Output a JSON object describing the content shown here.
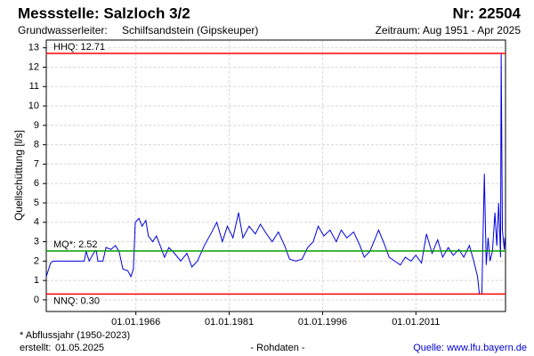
{
  "chart_data": {
    "type": "line",
    "title": "Messstelle: Salzloch 3/2",
    "number": "Nr: 22504",
    "aquifer_label": "Grundwasserleiter:",
    "aquifer": "Schilfsandstein (Gipskeuper)",
    "period": "Zeitraum: Aug 1951 - Apr 2025",
    "y_label": "Quellschüttung [l/s]",
    "footnote": "* Abflussjahr (1950-2023)",
    "created_label": "erstellt:",
    "created": "01.05.2025",
    "data_note": "- Rohdaten -",
    "source": "Quelle: www.lfu.bayern.de",
    "grid": true,
    "xlim": [
      1951.6,
      2025.4
    ],
    "ylim": [
      -0.6,
      13.4
    ],
    "yticks": [
      0,
      1,
      2,
      3,
      4,
      5,
      6,
      7,
      8,
      9,
      10,
      11,
      12,
      13
    ],
    "xticks": [
      {
        "value": 1966,
        "label": "01.01.1966"
      },
      {
        "value": 1981,
        "label": "01.01.1981"
      },
      {
        "value": 1996,
        "label": "01.01.1996"
      },
      {
        "value": 2011,
        "label": "01.01.2011"
      }
    ],
    "reference_lines": [
      {
        "name": "HHQ",
        "value": 12.71,
        "label": "HHQ: 12.71",
        "color": "#ff0000"
      },
      {
        "name": "MQ*",
        "value": 2.52,
        "label": "MQ*: 2.52",
        "color": "#00a000"
      },
      {
        "name": "NNQ",
        "value": 0.3,
        "label": "NNQ: 0.30",
        "color": "#ff0000"
      }
    ],
    "x": [
      1951.6,
      1951.9,
      1952.3,
      1952.7,
      1957.7,
      1958.0,
      1958.5,
      1959.0,
      1959.6,
      1959.9,
      1960.7,
      1961.2,
      1962.0,
      1962.7,
      1963.3,
      1963.9,
      1964.7,
      1965.2,
      1965.6,
      1965.9,
      1966.5,
      1967.0,
      1967.6,
      1968.0,
      1968.7,
      1969.3,
      1969.9,
      1970.6,
      1971.3,
      1972.2,
      1973.2,
      1974.2,
      1975.0,
      1975.9,
      1977.0,
      1978.2,
      1979.0,
      1979.9,
      1980.7,
      1981.6,
      1982.5,
      1983.2,
      1984.2,
      1985.2,
      1986.0,
      1987.0,
      1987.9,
      1988.9,
      1989.9,
      1990.7,
      1991.7,
      1992.7,
      1993.6,
      1994.5,
      1995.3,
      1996.2,
      1997.2,
      1998.2,
      1999.0,
      1999.9,
      2001.0,
      2002.0,
      2002.7,
      2003.6,
      2004.5,
      2005.0,
      2005.9,
      2006.7,
      2007.6,
      2008.5,
      2009.3,
      2010.2,
      2011.0,
      2011.9,
      2012.7,
      2013.6,
      2014.5,
      2015.3,
      2016.2,
      2017.0,
      2017.9,
      2018.7,
      2019.6,
      2020.3,
      2020.9,
      2021.2,
      2021.6,
      2021.7,
      2022.0,
      2022.3,
      2022.6,
      2022.9,
      2023.3,
      2023.7,
      2024.0,
      2024.3,
      2024.6,
      2024.7,
      2024.9,
      2025.2,
      2025.3
    ],
    "series": [
      {
        "color": "#0000dd",
        "values": [
          1.2,
          1.5,
          1.9,
          2.0,
          2.0,
          2.5,
          2.0,
          2.3,
          2.6,
          2.0,
          2.0,
          2.7,
          2.6,
          2.8,
          2.5,
          1.6,
          1.5,
          1.2,
          1.6,
          4.0,
          4.2,
          3.8,
          4.1,
          3.3,
          3.0,
          3.3,
          2.8,
          2.2,
          2.7,
          2.4,
          2.0,
          2.4,
          1.7,
          2.0,
          2.8,
          3.5,
          4.0,
          3.0,
          3.8,
          3.2,
          4.5,
          3.2,
          3.8,
          3.4,
          3.9,
          3.4,
          3.0,
          3.5,
          2.8,
          2.1,
          2.0,
          2.1,
          2.7,
          3.0,
          3.8,
          3.3,
          3.6,
          3.0,
          3.6,
          3.2,
          3.5,
          2.8,
          2.2,
          2.5,
          3.2,
          3.6,
          2.9,
          2.2,
          2.0,
          1.8,
          2.2,
          2.0,
          2.3,
          1.9,
          3.4,
          2.4,
          3.1,
          2.2,
          2.7,
          2.3,
          2.6,
          2.2,
          2.8,
          2.0,
          1.2,
          0.3,
          0.3,
          2.0,
          6.5,
          1.8,
          3.2,
          2.0,
          2.5,
          4.5,
          2.8,
          5.0,
          2.2,
          12.71,
          3.6,
          2.6,
          3.2
        ]
      }
    ]
  }
}
